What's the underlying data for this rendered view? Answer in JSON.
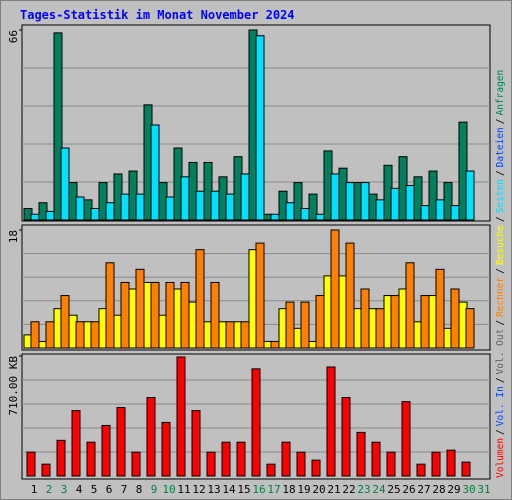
{
  "title": "Tages-Statistik im Monat November 2024",
  "legend_separator": "/",
  "chart_data": [
    {
      "type": "bar",
      "ylim": [
        0,
        66
      ],
      "yticks": [
        66
      ],
      "series": [
        {
          "name": "Anfragen",
          "color": "#00805c",
          "values": [
            4,
            6,
            65,
            13,
            7,
            13,
            16,
            17,
            40,
            13,
            25,
            20,
            20,
            15,
            22,
            66,
            2,
            10,
            13,
            9,
            24,
            18,
            13,
            9,
            19,
            22,
            15,
            17,
            13,
            34,
            0
          ]
        },
        {
          "name": "Seiten",
          "color": "#00e0ff",
          "values": [
            2,
            3,
            25,
            8,
            4,
            6,
            9,
            9,
            33,
            8,
            15,
            10,
            10,
            9,
            16,
            64,
            2,
            6,
            4,
            2,
            16,
            13,
            13,
            7,
            11,
            12,
            5,
            7,
            5,
            17,
            0
          ]
        }
      ],
      "extra_legend": [
        {
          "name": "Dateien",
          "color": "#0040ff"
        }
      ]
    },
    {
      "type": "bar",
      "ylim": [
        0,
        18
      ],
      "yticks": [
        18
      ],
      "series": [
        {
          "name": "Besuche",
          "color": "#ffff00",
          "values": [
            2,
            1,
            6,
            5,
            4,
            6,
            5,
            9,
            10,
            5,
            9,
            7,
            4,
            4,
            4,
            15,
            1,
            6,
            3,
            1,
            11,
            11,
            6,
            6,
            8,
            9,
            4,
            8,
            3,
            7,
            0
          ]
        },
        {
          "name": "Rechner",
          "color": "#ff8000",
          "values": [
            4,
            4,
            8,
            4,
            4,
            13,
            10,
            12,
            10,
            10,
            10,
            15,
            10,
            4,
            4,
            16,
            1,
            7,
            7,
            8,
            18,
            16,
            9,
            6,
            8,
            13,
            8,
            12,
            9,
            6,
            0
          ]
        }
      ]
    },
    {
      "type": "bar",
      "ylim": [
        0,
        710
      ],
      "yticks": [
        {
          "value": 710,
          "label": "710.00 KB"
        }
      ],
      "series": [
        {
          "name": "Volumen",
          "color": "#ff0000",
          "values": [
            141,
            70,
            211,
            387,
            200,
            299,
            405,
            141,
            464,
            317,
            704,
            387,
            141,
            200,
            200,
            634,
            70,
            200,
            141,
            94,
            645,
            464,
            258,
            200,
            141,
            440,
            70,
            141,
            153,
            82,
            0
          ]
        }
      ],
      "extra_legend": [
        {
          "name": "Vol. In",
          "color": "#0040ff"
        },
        {
          "name": "Vol. Out",
          "color": "#606060"
        }
      ],
      "categories": [
        "1",
        "2",
        "3",
        "4",
        "5",
        "6",
        "7",
        "8",
        "9",
        "10",
        "11",
        "12",
        "13",
        "14",
        "15",
        "16",
        "17",
        "18",
        "19",
        "20",
        "21",
        "22",
        "23",
        "24",
        "25",
        "26",
        "27",
        "28",
        "29",
        "30",
        "31"
      ],
      "category_colors": [
        "#000000",
        "#008040",
        "#008040",
        "#000000",
        "#000000",
        "#000000",
        "#000000",
        "#000000",
        "#008040",
        "#008040",
        "#000000",
        "#000000",
        "#000000",
        "#000000",
        "#000000",
        "#008040",
        "#008040",
        "#000000",
        "#000000",
        "#000000",
        "#000000",
        "#000000",
        "#008040",
        "#008040",
        "#000000",
        "#000000",
        "#000000",
        "#000000",
        "#000000",
        "#008040",
        "#008040"
      ]
    }
  ]
}
